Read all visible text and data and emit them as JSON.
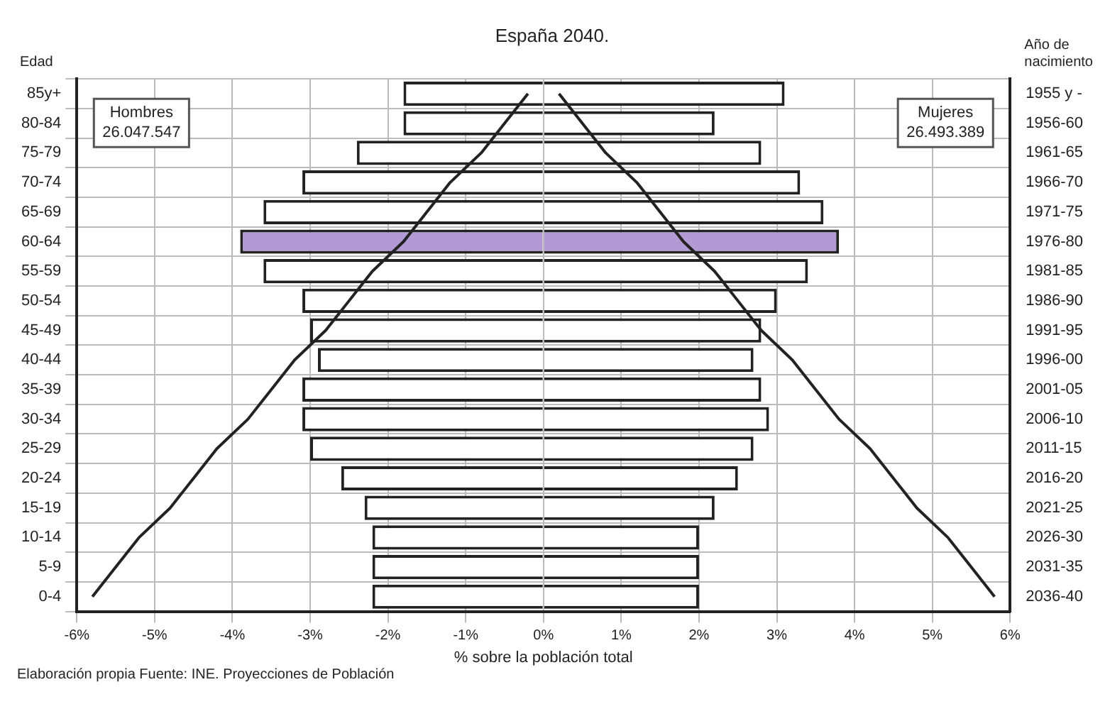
{
  "chart_data": {
    "type": "bar",
    "orientation": "horizontal",
    "stacked": true,
    "title": "España 2040.",
    "ylabel": "Edad",
    "y2label": "Año de nacimiento",
    "xlabel": "% sobre la población total",
    "categories": [
      "85y+",
      "80-84",
      "75-79",
      "70-74",
      "65-69",
      "60-64",
      "55-59",
      "50-54",
      "45-49",
      "40-44",
      "35-39",
      "30-34",
      "25-29",
      "20-24",
      "15-19",
      "10-14",
      "5-9",
      "0-4"
    ],
    "y2_categories": [
      "1955 y -",
      "1956-60",
      "1961-65",
      "1966-70",
      "1971-75",
      "1976-80",
      "1981-85",
      "1986-90",
      "1991-95",
      "1996-00",
      "2001-05",
      "2006-10",
      "2011-15",
      "2016-20",
      "2021-25",
      "2026-30",
      "2031-35",
      "2036-40"
    ],
    "series": [
      {
        "values": [
          -1.8,
          -1.8,
          -2.4,
          -3.1,
          -3.6,
          -3.9,
          -3.6,
          -3.1,
          -3.0,
          -2.9,
          -3.1,
          -3.1,
          -3.0,
          -2.6,
          -2.3,
          -2.2,
          -2.2,
          -2.2
        ],
        "colors": [
          "#ffffff",
          "#ffffff",
          "#ffffff",
          "#ffffff",
          "#ffffff",
          "#b49ad4",
          "#ffffff",
          "#ffffff",
          "#ffffff",
          "#ffffff",
          "#ffffff",
          "#ffffff",
          "#ffffff",
          "#ffffff",
          "#ffffff",
          "#ffffff",
          "#ffffff",
          "#ffffff"
        ]
      },
      {
        "values": [
          3.1,
          2.2,
          2.8,
          3.3,
          3.6,
          3.8,
          3.4,
          3.0,
          2.8,
          2.7,
          2.8,
          2.9,
          2.7,
          2.5,
          2.2,
          2.0,
          2.0,
          2.0
        ],
        "colors": [
          "#ffffff",
          "#ffffff",
          "#ffffff",
          "#ffffff",
          "#ffffff",
          "#b49ad4",
          "#ffffff",
          "#ffffff",
          "#ffffff",
          "#ffffff",
          "#ffffff",
          "#ffffff",
          "#ffffff",
          "#ffffff",
          "#ffffff",
          "#ffffff",
          "#ffffff",
          "#ffffff"
        ]
      },
      {
        "type": "line",
        "color": "#222222",
        "values": [
          -0.2,
          -0.5,
          -0.8,
          -1.2,
          -1.5,
          -1.8,
          -2.2,
          -2.5,
          -2.8,
          -3.2,
          -3.5,
          -3.8,
          -4.2,
          -4.5,
          -4.8,
          -5.2,
          -5.5,
          -5.8
        ]
      },
      {
        "type": "line",
        "color": "#222222",
        "values": [
          0.2,
          0.5,
          0.8,
          1.2,
          1.5,
          1.8,
          2.2,
          2.5,
          2.8,
          3.2,
          3.5,
          3.8,
          4.2,
          4.5,
          4.8,
          5.2,
          5.5,
          5.8
        ]
      }
    ],
    "xlim": [
      -6,
      6
    ],
    "xticks": [
      {
        "value": -6,
        "label": "-6%"
      },
      {
        "value": -5,
        "label": "-5%"
      },
      {
        "value": -4,
        "label": "-4%"
      },
      {
        "value": -3,
        "label": "-3%"
      },
      {
        "value": -2,
        "label": "-2%"
      },
      {
        "value": -1,
        "label": "-1%"
      },
      {
        "value": 0,
        "label": "0%"
      },
      {
        "value": 1,
        "label": "1%"
      },
      {
        "value": 2,
        "label": "2%"
      },
      {
        "value": 3,
        "label": "3%"
      },
      {
        "value": 4,
        "label": "4%"
      },
      {
        "value": 5,
        "label": "5%"
      },
      {
        "value": 6,
        "label": "6%"
      }
    ],
    "grid": true,
    "legend": false,
    "marker": "none",
    "annotations": [
      "Hombres\n26.047.547",
      "Mujeres\n26.493.389",
      "Elaboración propia Fuente: INE. Proyecciones de Población"
    ]
  }
}
